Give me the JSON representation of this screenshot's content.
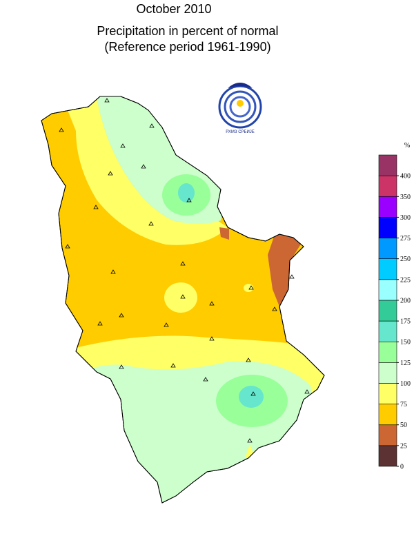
{
  "header": {
    "title": "October 2010",
    "subtitle": "Precipitation in percent of normal",
    "reference": "(Reference period 1961-1990)"
  },
  "logo": {
    "caption": "РХМЗ СРБИЈЕ"
  },
  "legend": {
    "unit": "%",
    "ticks": [
      0,
      25,
      50,
      75,
      100,
      125,
      150,
      175,
      200,
      225,
      250,
      275,
      300,
      350,
      400
    ],
    "colors": [
      "#5c3232",
      "#cc6633",
      "#ffcc00",
      "#ffff66",
      "#ccffcc",
      "#99ff99",
      "#66e6cc",
      "#33cc99",
      "#99ffff",
      "#00ccff",
      "#0099ff",
      "#0000ff",
      "#9900ff",
      "#cc3366",
      "#993366"
    ]
  }
}
